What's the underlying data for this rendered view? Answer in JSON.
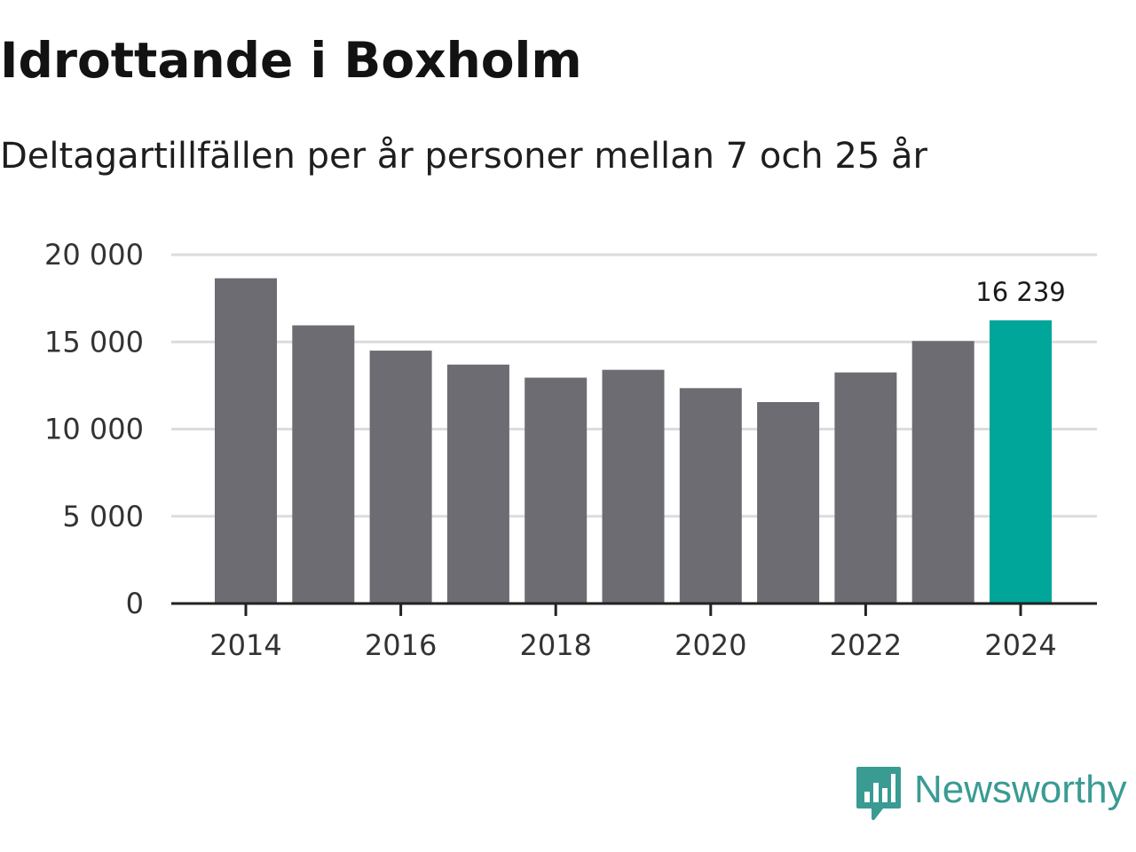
{
  "header": {
    "title": "Idrottande i Boxholm",
    "subtitle": "Deltagartillfällen per år personer mellan 7 och 25 år"
  },
  "chart_data": {
    "type": "bar",
    "title": "Idrottande i Boxholm",
    "subtitle": "Deltagartillfällen per år personer mellan 7 och 25 år",
    "xlabel": "",
    "ylabel": "",
    "categories": [
      "2014",
      "2015",
      "2016",
      "2017",
      "2018",
      "2019",
      "2020",
      "2021",
      "2022",
      "2023",
      "2024"
    ],
    "values": [
      18650,
      15950,
      14500,
      13700,
      12950,
      13400,
      12350,
      11550,
      13250,
      15050,
      16239
    ],
    "ylim": [
      0,
      20000
    ],
    "yticks": [
      0,
      5000,
      10000,
      15000,
      20000
    ],
    "ytick_labels": [
      "0",
      "5 000",
      "10 000",
      "15 000",
      "20 000"
    ],
    "xticks": [
      "2014",
      "2016",
      "2018",
      "2020",
      "2022",
      "2024"
    ],
    "highlight_index": 10,
    "highlight_label": "16 239",
    "grid": true,
    "colors": {
      "bar": "#6d6c73",
      "highlight": "#00a69a",
      "grid": "#dcdcdc",
      "axis": "#222222"
    }
  },
  "branding": {
    "name": "Newsworthy",
    "logo_icon": "newsworthy-logo-icon",
    "color": "#3a9b93"
  }
}
